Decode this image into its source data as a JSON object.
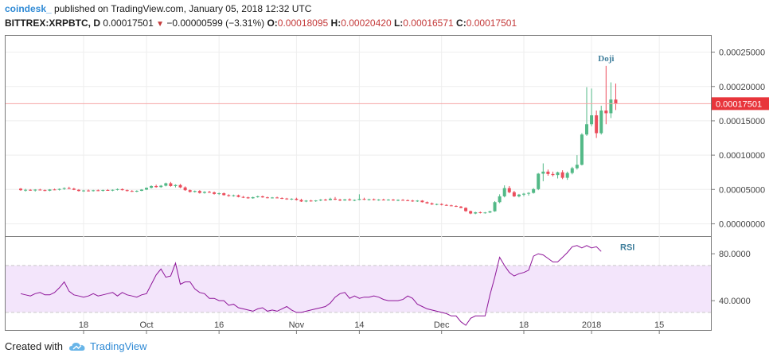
{
  "header": {
    "author": "coindesk_",
    "published": "published on TradingView.com, January 05, 2018 12:32 UTC",
    "symbol": "BITTREX:XRPBTC, D",
    "last": "0.00017501",
    "change_arrow": "▼",
    "change": "−0.00000599 (−3.31%)",
    "open_label": "O:",
    "open": "0.00018095",
    "high_label": "H:",
    "high": "0.00020420",
    "low_label": "L:",
    "low": "0.00016571",
    "close_label": "C:",
    "close": "0.00017501"
  },
  "footer": {
    "created_with": "Created with",
    "brand": "TradingView"
  },
  "colors": {
    "up": "#53b987",
    "down": "#eb4d5c",
    "rsi": "#8e1599",
    "rsi_band": "#f3e5fb",
    "price_line": "#f6a5a5",
    "annotation": "#3f7e9b"
  },
  "chart_data": [
    {
      "type": "candlestick",
      "title": "BITTREX:XRPBTC, D",
      "y_ticks": [
        "0.00025000",
        "0.00020000",
        "0.00015000",
        "0.00010000",
        "0.00005000",
        "0.00000000"
      ],
      "ylim": [
        -1.8e-05,
        0.000275
      ],
      "last_price_label": "0.00017501",
      "last_price": 0.00017501,
      "annotation": {
        "text": "Doji",
        "x": "2018-01-04"
      },
      "x_ticks": [
        "18",
        "Oct",
        "16",
        "Nov",
        "14",
        "Dec",
        "18",
        "2018",
        "15"
      ],
      "x_tick_dates": [
        "2017-09-18",
        "2017-10-01",
        "2017-10-16",
        "2017-11-01",
        "2017-11-14",
        "2017-12-01",
        "2017-12-18",
        "2018-01-01",
        "2018-01-15"
      ],
      "candles_ohlc": [
        [
          "2017-09-05",
          5.12e-05,
          5.2e-05,
          4.8e-05,
          4.9e-05
        ],
        [
          "2017-09-06",
          4.9e-05,
          5.1e-05,
          4.7e-05,
          4.95e-05
        ],
        [
          "2017-09-07",
          4.95e-05,
          5.05e-05,
          4.8e-05,
          4.85e-05
        ],
        [
          "2017-09-08",
          4.85e-05,
          5.05e-05,
          4.7e-05,
          4.98e-05
        ],
        [
          "2017-09-09",
          4.98e-05,
          5.1e-05,
          4.85e-05,
          4.9e-05
        ],
        [
          "2017-09-10",
          4.9e-05,
          5e-05,
          4.75e-05,
          4.82e-05
        ],
        [
          "2017-09-11",
          4.82e-05,
          5.05e-05,
          4.75e-05,
          5e-05
        ],
        [
          "2017-09-12",
          5e-05,
          5.12e-05,
          4.9e-05,
          4.95e-05
        ],
        [
          "2017-09-13",
          4.95e-05,
          5.15e-05,
          4.85e-05,
          5.08e-05
        ],
        [
          "2017-09-14",
          5.08e-05,
          5.3e-05,
          4.95e-05,
          5.2e-05
        ],
        [
          "2017-09-15",
          5.2e-05,
          5.4e-05,
          5.05e-05,
          5.12e-05
        ],
        [
          "2017-09-16",
          5.12e-05,
          5.25e-05,
          4.9e-05,
          4.95e-05
        ],
        [
          "2017-09-17",
          4.95e-05,
          5.05e-05,
          4.7e-05,
          4.78e-05
        ],
        [
          "2017-09-18",
          4.78e-05,
          4.95e-05,
          4.65e-05,
          4.85e-05
        ],
        [
          "2017-09-19",
          4.85e-05,
          5e-05,
          4.7e-05,
          4.8e-05
        ],
        [
          "2017-09-20",
          4.8e-05,
          4.95e-05,
          4.7e-05,
          4.88e-05
        ],
        [
          "2017-09-21",
          4.88e-05,
          5e-05,
          4.75e-05,
          4.82e-05
        ],
        [
          "2017-09-22",
          4.82e-05,
          4.98e-05,
          4.7e-05,
          4.92e-05
        ],
        [
          "2017-09-23",
          4.92e-05,
          5.05e-05,
          4.8e-05,
          4.85e-05
        ],
        [
          "2017-09-24",
          4.85e-05,
          5e-05,
          4.75e-05,
          4.95e-05
        ],
        [
          "2017-09-25",
          4.95e-05,
          5.15e-05,
          4.85e-05,
          5.05e-05
        ],
        [
          "2017-09-26",
          5.05e-05,
          5.15e-05,
          4.85e-05,
          4.9e-05
        ],
        [
          "2017-09-27",
          4.9e-05,
          5e-05,
          4.7e-05,
          4.78e-05
        ],
        [
          "2017-09-28",
          4.78e-05,
          4.9e-05,
          4.65e-05,
          4.72e-05
        ],
        [
          "2017-09-29",
          4.72e-05,
          4.88e-05,
          4.6e-05,
          4.8e-05
        ],
        [
          "2017-09-30",
          4.8e-05,
          5.05e-05,
          4.75e-05,
          4.98e-05
        ],
        [
          "2017-10-01",
          4.98e-05,
          5.3e-05,
          4.9e-05,
          5.25e-05
        ],
        [
          "2017-10-02",
          5.25e-05,
          5.6e-05,
          5.15e-05,
          5.5e-05
        ],
        [
          "2017-10-03",
          5.5e-05,
          5.7e-05,
          5.25e-05,
          5.35e-05
        ],
        [
          "2017-10-04",
          5.35e-05,
          5.65e-05,
          5.25e-05,
          5.55e-05
        ],
        [
          "2017-10-05",
          5.55e-05,
          6e-05,
          5.45e-05,
          5.9e-05
        ],
        [
          "2017-10-06",
          5.9e-05,
          6.1e-05,
          5.4e-05,
          5.5e-05
        ],
        [
          "2017-10-07",
          5.5e-05,
          5.75e-05,
          5.3e-05,
          5.65e-05
        ],
        [
          "2017-10-08",
          5.65e-05,
          5.8e-05,
          5.2e-05,
          5.3e-05
        ],
        [
          "2017-10-09",
          5.3e-05,
          5.45e-05,
          4.8e-05,
          4.9e-05
        ],
        [
          "2017-10-10",
          4.9e-05,
          5e-05,
          4.55e-05,
          4.65e-05
        ],
        [
          "2017-10-11",
          4.65e-05,
          4.85e-05,
          4.55e-05,
          4.78e-05
        ],
        [
          "2017-10-12",
          4.78e-05,
          4.9e-05,
          4.4e-05,
          4.5e-05
        ],
        [
          "2017-10-13",
          4.5e-05,
          4.75e-05,
          4.4e-05,
          4.65e-05
        ],
        [
          "2017-10-14",
          4.65e-05,
          4.8e-05,
          4.5e-05,
          4.58e-05
        ],
        [
          "2017-10-15",
          4.58e-05,
          4.7e-05,
          4.25e-05,
          4.35e-05
        ],
        [
          "2017-10-16",
          4.35e-05,
          4.55e-05,
          4.2e-05,
          4.45e-05
        ],
        [
          "2017-10-17",
          4.45e-05,
          4.55e-05,
          4.1e-05,
          4.18e-05
        ],
        [
          "2017-10-18",
          4.18e-05,
          4.3e-05,
          3.95e-05,
          4.05e-05
        ],
        [
          "2017-10-19",
          4.05e-05,
          4.25e-05,
          3.95e-05,
          4.15e-05
        ],
        [
          "2017-10-20",
          4.15e-05,
          4.25e-05,
          3.85e-05,
          3.92e-05
        ],
        [
          "2017-10-21",
          3.92e-05,
          4.05e-05,
          3.75e-05,
          3.85e-05
        ],
        [
          "2017-10-22",
          3.85e-05,
          3.95e-05,
          3.65e-05,
          3.72e-05
        ],
        [
          "2017-10-23",
          3.72e-05,
          3.95e-05,
          3.65e-05,
          3.88e-05
        ],
        [
          "2017-10-24",
          3.88e-05,
          4.1e-05,
          3.8e-05,
          4e-05
        ],
        [
          "2017-10-25",
          4e-05,
          4.1e-05,
          3.8e-05,
          3.85e-05
        ],
        [
          "2017-10-26",
          3.85e-05,
          3.95e-05,
          3.7e-05,
          3.78e-05
        ],
        [
          "2017-10-27",
          3.78e-05,
          3.9e-05,
          3.68e-05,
          3.83e-05
        ],
        [
          "2017-10-28",
          3.83e-05,
          3.95e-05,
          3.72e-05,
          3.76e-05
        ],
        [
          "2017-10-29",
          3.76e-05,
          3.85e-05,
          3.6e-05,
          3.68e-05
        ],
        [
          "2017-10-30",
          3.68e-05,
          3.78e-05,
          3.5e-05,
          3.57e-05
        ],
        [
          "2017-10-31",
          3.57e-05,
          3.72e-05,
          3.45e-05,
          3.65e-05
        ],
        [
          "2017-11-01",
          3.65e-05,
          3.8e-05,
          3.4e-05,
          3.48e-05
        ],
        [
          "2017-11-02",
          3.48e-05,
          3.65e-05,
          3.18e-05,
          3.25e-05
        ],
        [
          "2017-11-03",
          3.25e-05,
          3.45e-05,
          3.15e-05,
          3.38e-05
        ],
        [
          "2017-11-04",
          3.38e-05,
          3.5e-05,
          3.22e-05,
          3.3e-05
        ],
        [
          "2017-11-05",
          3.3e-05,
          3.45e-05,
          3.2e-05,
          3.4e-05
        ],
        [
          "2017-11-06",
          3.4e-05,
          3.6e-05,
          3.3e-05,
          3.52e-05
        ],
        [
          "2017-11-07",
          3.52e-05,
          3.65e-05,
          3.35e-05,
          3.45e-05
        ],
        [
          "2017-11-08",
          3.45e-05,
          3.8e-05,
          3.4e-05,
          3.65e-05
        ],
        [
          "2017-11-09",
          3.65e-05,
          3.9e-05,
          3.45e-05,
          3.52e-05
        ],
        [
          "2017-11-10",
          3.52e-05,
          3.65e-05,
          3.3e-05,
          3.4e-05
        ],
        [
          "2017-11-11",
          3.4e-05,
          3.62e-05,
          3.35e-05,
          3.55e-05
        ],
        [
          "2017-11-12",
          3.55e-05,
          3.7e-05,
          3.35e-05,
          3.42e-05
        ],
        [
          "2017-11-13",
          3.42e-05,
          3.55e-05,
          3.3e-05,
          3.48e-05
        ],
        [
          "2017-11-14",
          3.48e-05,
          4.3e-05,
          3.42e-05,
          3.62e-05
        ],
        [
          "2017-11-15",
          3.62e-05,
          3.8e-05,
          3.45e-05,
          3.52e-05
        ],
        [
          "2017-11-16",
          3.52e-05,
          3.65e-05,
          3.38e-05,
          3.58e-05
        ],
        [
          "2017-11-17",
          3.58e-05,
          3.68e-05,
          3.4e-05,
          3.47e-05
        ],
        [
          "2017-11-18",
          3.47e-05,
          3.6e-05,
          3.35e-05,
          3.53e-05
        ],
        [
          "2017-11-19",
          3.53e-05,
          3.65e-05,
          3.4e-05,
          3.45e-05
        ],
        [
          "2017-11-20",
          3.45e-05,
          3.6e-05,
          3.38e-05,
          3.52e-05
        ],
        [
          "2017-11-21",
          3.52e-05,
          3.62e-05,
          3.35e-05,
          3.42e-05
        ],
        [
          "2017-11-22",
          3.42e-05,
          3.55e-05,
          3.3e-05,
          3.48e-05
        ],
        [
          "2017-11-23",
          3.48e-05,
          3.6e-05,
          3.38e-05,
          3.43e-05
        ],
        [
          "2017-11-24",
          3.43e-05,
          3.55e-05,
          3.3e-05,
          3.38e-05
        ],
        [
          "2017-11-25",
          3.38e-05,
          3.5e-05,
          3.2e-05,
          3.26e-05
        ],
        [
          "2017-11-26",
          3.26e-05,
          3.45e-05,
          3.18e-05,
          3.38e-05
        ],
        [
          "2017-11-27",
          3.38e-05,
          3.45e-05,
          3.1e-05,
          3.15e-05
        ],
        [
          "2017-11-28",
          3.15e-05,
          3.25e-05,
          2.92e-05,
          2.98e-05
        ],
        [
          "2017-11-29",
          2.98e-05,
          3.1e-05,
          2.75e-05,
          2.82e-05
        ],
        [
          "2017-11-30",
          2.82e-05,
          2.95e-05,
          2.7e-05,
          2.88e-05
        ],
        [
          "2017-12-01",
          2.88e-05,
          2.98e-05,
          2.68e-05,
          2.75e-05
        ],
        [
          "2017-12-02",
          2.75e-05,
          2.85e-05,
          2.62e-05,
          2.68e-05
        ],
        [
          "2017-12-03",
          2.68e-05,
          2.78e-05,
          2.55e-05,
          2.6e-05
        ],
        [
          "2017-12-04",
          2.6e-05,
          2.7e-05,
          2.45e-05,
          2.5e-05
        ],
        [
          "2017-12-05",
          2.5e-05,
          2.6e-05,
          2.25e-05,
          2.32e-05
        ],
        [
          "2017-12-06",
          2.32e-05,
          2.4e-05,
          1.75e-05,
          1.85e-05
        ],
        [
          "2017-12-07",
          1.85e-05,
          1.92e-05,
          1.4e-05,
          1.5e-05
        ],
        [
          "2017-12-08",
          1.5e-05,
          1.75e-05,
          1.4e-05,
          1.68e-05
        ],
        [
          "2017-12-09",
          1.68e-05,
          1.8e-05,
          1.5e-05,
          1.58e-05
        ],
        [
          "2017-12-10",
          1.58e-05,
          1.72e-05,
          1.48e-05,
          1.65e-05
        ],
        [
          "2017-12-11",
          1.65e-05,
          1.9e-05,
          1.55e-05,
          1.82e-05
        ],
        [
          "2017-12-12",
          1.82e-05,
          3.3e-05,
          1.75e-05,
          3.15e-05
        ],
        [
          "2017-12-13",
          3.15e-05,
          4.3e-05,
          3e-05,
          4e-05
        ],
        [
          "2017-12-14",
          4e-05,
          5.6e-05,
          3.85e-05,
          5.2e-05
        ],
        [
          "2017-12-15",
          5.2e-05,
          5.5e-05,
          4.45e-05,
          4.6e-05
        ],
        [
          "2017-12-16",
          4.6e-05,
          4.8e-05,
          3.9e-05,
          4e-05
        ],
        [
          "2017-12-17",
          4e-05,
          4.35e-05,
          3.85e-05,
          4.25e-05
        ],
        [
          "2017-12-18",
          4.25e-05,
          4.5e-05,
          4e-05,
          4.38e-05
        ],
        [
          "2017-12-19",
          4.38e-05,
          4.6e-05,
          4.1e-05,
          4.5e-05
        ],
        [
          "2017-12-20",
          4.5e-05,
          5.2e-05,
          4.4e-05,
          5.05e-05
        ],
        [
          "2017-12-21",
          5.05e-05,
          7.4e-05,
          4.9e-05,
          7.3e-05
        ],
        [
          "2017-12-22",
          7.3e-05,
          8.8e-05,
          6.2e-05,
          7.6e-05
        ],
        [
          "2017-12-23",
          7.6e-05,
          7.9e-05,
          7e-05,
          7.25e-05
        ],
        [
          "2017-12-24",
          7.25e-05,
          7.6e-05,
          6.9e-05,
          7.1e-05
        ],
        [
          "2017-12-25",
          7.1e-05,
          7.6e-05,
          6.6e-05,
          7.5e-05
        ],
        [
          "2017-12-26",
          7.5e-05,
          7.8e-05,
          6.5e-05,
          6.7e-05
        ],
        [
          "2017-12-27",
          6.7e-05,
          7.6e-05,
          6.4e-05,
          7.4e-05
        ],
        [
          "2017-12-28",
          7.4e-05,
          8.3e-05,
          7.2e-05,
          8.1e-05
        ],
        [
          "2017-12-29",
          8.1e-05,
          0.0001,
          7.9e-05,
          8.6e-05
        ],
        [
          "2017-12-30",
          8.6e-05,
          0.000132,
          8.5e-05,
          0.00013
        ],
        [
          "2017-12-31",
          0.00013,
          0.000199,
          0.000128,
          0.000145
        ],
        [
          "2018-01-01",
          0.000145,
          0.000197,
          0.000142,
          0.000158
        ],
        [
          "2018-01-02",
          0.000158,
          0.000165,
          0.000125,
          0.000132
        ],
        [
          "2018-01-03",
          0.000132,
          0.000172,
          0.00013,
          0.000165
        ],
        [
          "2018-01-04",
          0.000165,
          0.00023,
          0.000145,
          0.000161
        ],
        [
          "2018-01-05",
          0.000161,
          0.000206,
          0.000154,
          0.000181
        ],
        [
          "2018-01-06",
          0.00018095,
          0.0002042,
          0.00016571,
          0.00017501
        ]
      ]
    },
    {
      "type": "line",
      "title": "RSI",
      "y_ticks": [
        "80.0000",
        "40.0000"
      ],
      "ylim": [
        15,
        95
      ],
      "band": [
        30,
        70
      ],
      "x_start": "2017-09-05",
      "x_step_days": 1,
      "series": [
        {
          "name": "RSI",
          "values": [
            46,
            45,
            44,
            46,
            47,
            45,
            45,
            47,
            51,
            56,
            48,
            45,
            44,
            43,
            44,
            46,
            44,
            45,
            46,
            47,
            44,
            47,
            45,
            44,
            43,
            45,
            46,
            54,
            62,
            67,
            60,
            61,
            72,
            54,
            56,
            56,
            50,
            47,
            46,
            42,
            42,
            40,
            40,
            36,
            37,
            34,
            33,
            32,
            31,
            33,
            34,
            31,
            32,
            31,
            33,
            35,
            32,
            30,
            30,
            31,
            32,
            33,
            34,
            35,
            38,
            43,
            46,
            47,
            42,
            44,
            42,
            43,
            43,
            44,
            43,
            41,
            40,
            40,
            40,
            41,
            44,
            42,
            37,
            35,
            33,
            32,
            31,
            30,
            29,
            27,
            27,
            22,
            19,
            25,
            27,
            27,
            27,
            45,
            60,
            77,
            70,
            64,
            61,
            63,
            64,
            66,
            78,
            80,
            79,
            76,
            73,
            73,
            77,
            81,
            86,
            87,
            85,
            87,
            85,
            86,
            82
          ]
        }
      ]
    }
  ]
}
